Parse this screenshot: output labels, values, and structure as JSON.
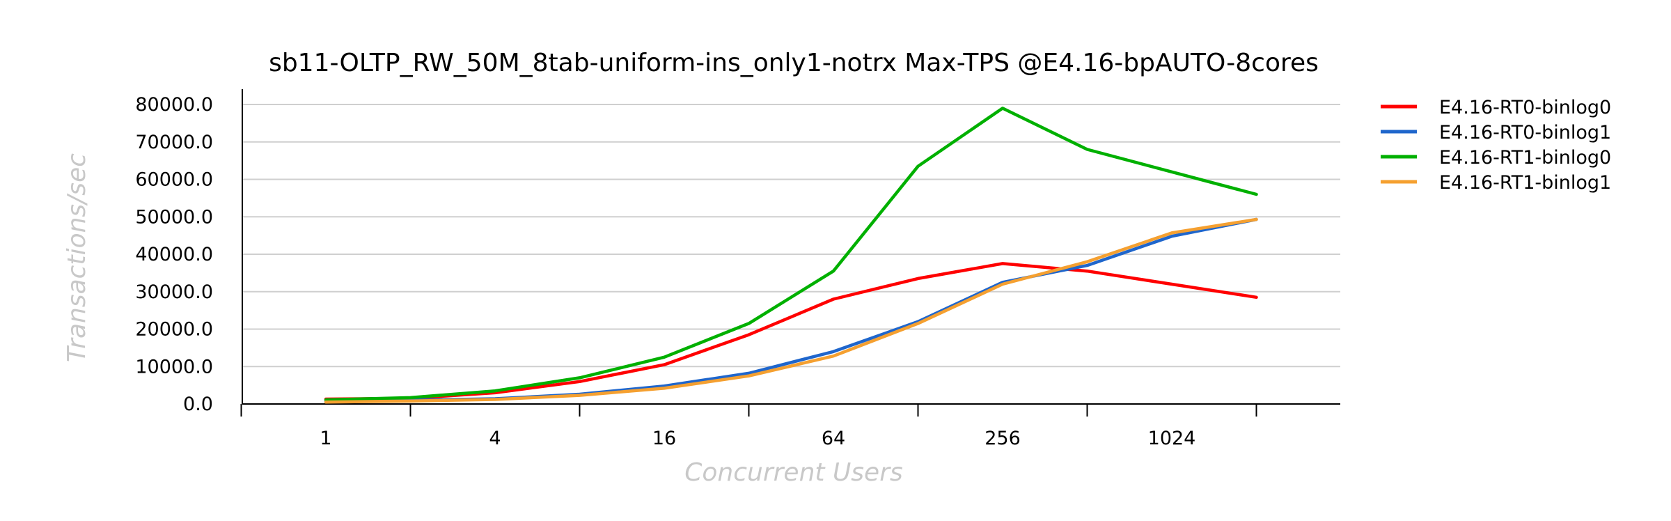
{
  "chart_data": {
    "type": "line",
    "title": "sb11-OLTP_RW_50M_8tab-uniform-ins_only1-notrx Max-TPS @E4.16-bpAUTO-8cores",
    "xlabel": "Concurrent Users",
    "ylabel": "Transactions/sec",
    "x_scale": "log2",
    "x": [
      1,
      2,
      4,
      8,
      16,
      32,
      64,
      128,
      256,
      512,
      1024,
      2048
    ],
    "x_tick_labels": [
      "1",
      "4",
      "16",
      "64",
      "256",
      "1024"
    ],
    "x_tick_values": [
      1,
      4,
      16,
      64,
      256,
      1024
    ],
    "ylim": [
      0,
      80000
    ],
    "y_ticks": [
      0,
      10000,
      20000,
      30000,
      40000,
      50000,
      60000,
      70000,
      80000
    ],
    "y_tick_labels": [
      "0.0",
      "10000.0",
      "20000.0",
      "30000.0",
      "40000.0",
      "50000.0",
      "60000.0",
      "70000.0",
      "80000.0"
    ],
    "grid": true,
    "legend_position": "right",
    "series": [
      {
        "name": "E4.16-RT0-binlog0",
        "color": "#ff0000",
        "values": [
          1300,
          1500,
          3000,
          6000,
          10500,
          18500,
          28000,
          33500,
          37500,
          35500,
          32000,
          28500
        ]
      },
      {
        "name": "E4.16-RT0-binlog1",
        "color": "#1f66cc",
        "values": [
          600,
          1000,
          1400,
          2600,
          4800,
          8200,
          14000,
          22000,
          32500,
          37000,
          44800,
          49300
        ]
      },
      {
        "name": "E4.16-RT1-binlog0",
        "color": "#00b000",
        "values": [
          1100,
          1700,
          3500,
          7000,
          12500,
          21500,
          35500,
          63500,
          79000,
          68000,
          62000,
          56000
        ]
      },
      {
        "name": "E4.16-RT1-binlog1",
        "color": "#f5a030",
        "values": [
          500,
          800,
          1200,
          2300,
          4200,
          7500,
          12800,
          21500,
          32000,
          38000,
          45700,
          49300
        ]
      }
    ]
  }
}
